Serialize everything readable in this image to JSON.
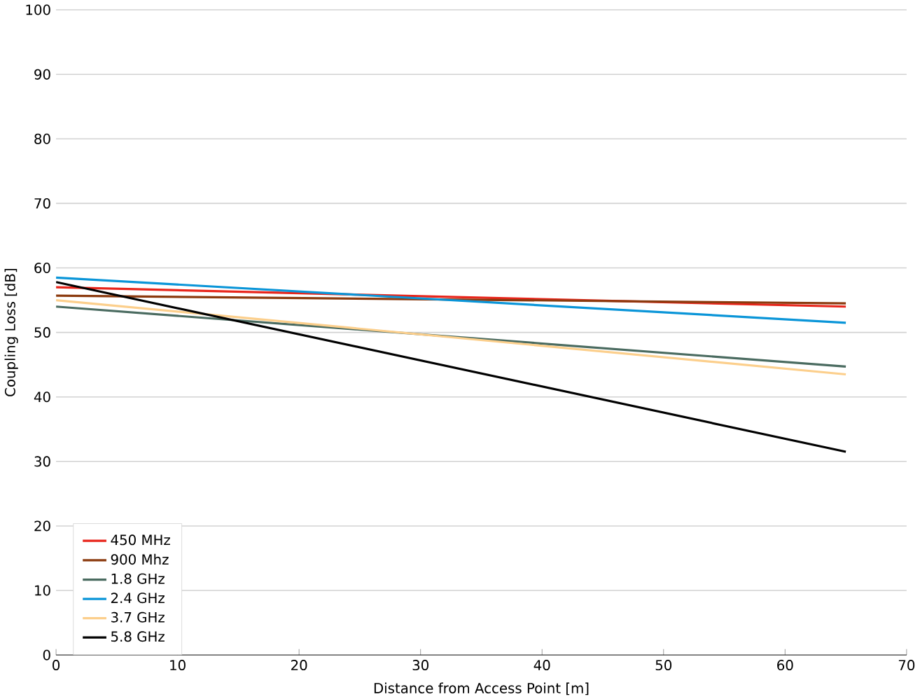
{
  "chart_data": {
    "type": "line",
    "xlabel": "Distance from Access Point [m]",
    "ylabel": "Coupling Loss [dB]",
    "x": [
      0,
      65
    ],
    "series": [
      {
        "name": "450 MHz",
        "color": "#e8251b",
        "values": [
          57,
          54
        ]
      },
      {
        "name": "900 Mhz",
        "color": "#8b3a0e",
        "values": [
          55.7,
          54.5
        ]
      },
      {
        "name": "1.8 GHz",
        "color": "#4a6b60",
        "values": [
          54,
          44.7
        ]
      },
      {
        "name": "2.4 GHz",
        "color": "#0a95d8",
        "values": [
          58.5,
          51.5
        ]
      },
      {
        "name": "3.7 GHz",
        "color": "#fccf8c",
        "values": [
          55,
          43.5
        ]
      },
      {
        "name": "5.8 GHz",
        "color": "#000000",
        "values": [
          57.8,
          31.5
        ]
      }
    ],
    "xlim": [
      0,
      70
    ],
    "ylim": [
      0,
      100
    ],
    "xticks": [
      0,
      10,
      20,
      30,
      40,
      50,
      60,
      70
    ],
    "yticks": [
      0,
      10,
      20,
      30,
      40,
      50,
      60,
      70,
      80,
      90,
      100
    ],
    "grid": "y",
    "legend": "bottom left",
    "marker": "none",
    "line_style": "solid"
  }
}
